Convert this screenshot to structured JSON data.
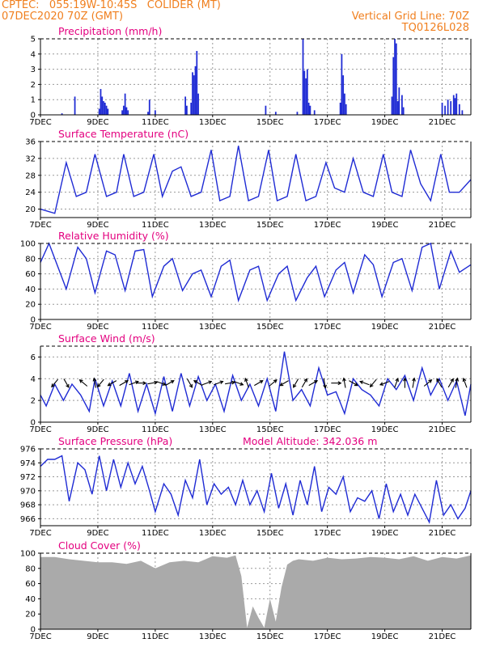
{
  "header": {
    "line1": "CPTEC:   055:19W-10:45S   COLIDER (MT)",
    "line2": "07DEC2020 70Z (GMT)",
    "right1": "Vertical Grid Line: 70Z",
    "right2": "TQ0126L028"
  },
  "colors": {
    "header": "#f07f1e",
    "title": "#e3007f",
    "series": "#1f2bd4",
    "cloud": "#aaaaaa",
    "grid": "#999999",
    "axis": "#000000"
  },
  "x_axis": {
    "ticks": [
      "7DEC",
      "9DEC",
      "11DEC",
      "13DEC",
      "15DEC",
      "17DEC",
      "19DEC",
      "21DEC"
    ],
    "tick_days": [
      7,
      9,
      11,
      13,
      15,
      17,
      19,
      21
    ],
    "range": [
      7.0,
      22.0
    ]
  },
  "chart_data": [
    {
      "type": "bar",
      "title": "Precipitation (mm/h)",
      "ylim": [
        0,
        5
      ],
      "yticks": [
        0,
        1,
        2,
        3,
        4,
        5
      ],
      "x": [
        7.75,
        8.2,
        9.05,
        9.1,
        9.15,
        9.2,
        9.25,
        9.3,
        9.35,
        9.85,
        9.9,
        9.95,
        10.0,
        10.05,
        10.75,
        10.8,
        11.0,
        12.05,
        12.1,
        12.25,
        12.3,
        12.35,
        12.4,
        12.45,
        12.5,
        14.85,
        15.2,
        15.95,
        16.15,
        16.2,
        16.25,
        16.3,
        16.35,
        16.4,
        16.55,
        17.45,
        17.5,
        17.55,
        17.6,
        17.65,
        19.25,
        19.3,
        19.35,
        19.4,
        19.45,
        19.5,
        19.6,
        19.65,
        21.0,
        21.1,
        21.2,
        21.3,
        21.4,
        21.45,
        21.5,
        21.6,
        21.7
      ],
      "values": [
        0.1,
        1.2,
        0.4,
        1.7,
        1.2,
        0.9,
        0.8,
        0.6,
        0.4,
        0.3,
        0.6,
        1.4,
        0.5,
        0.3,
        0.2,
        1.0,
        0.3,
        1.2,
        0.6,
        0.8,
        2.8,
        2.6,
        3.2,
        4.2,
        1.4,
        0.6,
        0.2,
        0.2,
        5.0,
        2.9,
        2.4,
        3.0,
        0.8,
        0.6,
        0.3,
        0.8,
        4.0,
        2.6,
        1.4,
        0.7,
        1.2,
        3.8,
        5.0,
        4.7,
        0.9,
        1.8,
        1.3,
        0.5,
        0.8,
        0.6,
        1.0,
        0.9,
        1.3,
        1.1,
        1.4,
        0.7,
        0.3
      ]
    },
    {
      "type": "line",
      "title": "Surface Temperature (nC)",
      "ylim": [
        18,
        36
      ],
      "yticks": [
        20,
        24,
        28,
        32,
        36
      ],
      "series": [
        {
          "x": [
            7.0,
            7.5,
            7.9,
            8.25,
            8.6,
            8.9,
            9.3,
            9.65,
            9.9,
            10.25,
            10.6,
            10.95,
            11.25,
            11.6,
            11.9,
            12.25,
            12.6,
            12.95,
            13.25,
            13.6,
            13.9,
            14.25,
            14.6,
            14.95,
            15.25,
            15.6,
            15.9,
            16.25,
            16.6,
            16.95,
            17.25,
            17.6,
            17.9,
            18.25,
            18.6,
            18.95,
            19.25,
            19.6,
            19.9,
            20.25,
            20.6,
            20.95,
            21.25,
            21.6,
            22.0
          ],
          "y": [
            20,
            19,
            31,
            23,
            24,
            33,
            23,
            24,
            33,
            23,
            24,
            33,
            23,
            29,
            30,
            23,
            24,
            34,
            22,
            23,
            35,
            22,
            23,
            34,
            22,
            23,
            33,
            22,
            23,
            31,
            25,
            24,
            32,
            24,
            23,
            33,
            24,
            23,
            34,
            26,
            22,
            33,
            24,
            24,
            27
          ]
        }
      ]
    },
    {
      "type": "line",
      "title": "Relative Humidity (%)",
      "ylim": [
        0,
        100
      ],
      "yticks": [
        0,
        20,
        40,
        60,
        80,
        100
      ],
      "series": [
        {
          "x": [
            7.0,
            7.3,
            7.9,
            8.3,
            8.6,
            8.9,
            9.3,
            9.6,
            9.95,
            10.3,
            10.6,
            10.9,
            11.3,
            11.6,
            11.95,
            12.3,
            12.6,
            12.95,
            13.3,
            13.6,
            13.9,
            14.3,
            14.6,
            14.9,
            15.3,
            15.6,
            15.9,
            16.3,
            16.6,
            16.9,
            17.3,
            17.6,
            17.9,
            18.3,
            18.6,
            18.9,
            19.3,
            19.6,
            19.95,
            20.3,
            20.6,
            20.9,
            21.3,
            21.6,
            22.0
          ],
          "y": [
            75,
            100,
            40,
            95,
            80,
            35,
            90,
            85,
            38,
            90,
            92,
            30,
            70,
            80,
            38,
            60,
            65,
            30,
            70,
            78,
            25,
            65,
            70,
            25,
            60,
            70,
            25,
            55,
            70,
            30,
            65,
            75,
            35,
            85,
            72,
            30,
            75,
            80,
            38,
            95,
            100,
            40,
            90,
            62,
            72
          ]
        }
      ]
    },
    {
      "type": "line",
      "title": "Surface Wind (m/s)",
      "ylim": [
        0,
        7
      ],
      "yticks": [
        0,
        2,
        4,
        6
      ],
      "series": [
        {
          "x": [
            7.0,
            7.2,
            7.5,
            7.8,
            8.1,
            8.4,
            8.7,
            8.9,
            9.2,
            9.5,
            9.8,
            10.1,
            10.4,
            10.7,
            11.0,
            11.3,
            11.6,
            11.9,
            12.2,
            12.5,
            12.8,
            13.1,
            13.4,
            13.7,
            14.0,
            14.3,
            14.6,
            14.9,
            15.2,
            15.5,
            15.8,
            16.1,
            16.4,
            16.7,
            17.0,
            17.3,
            17.6,
            17.9,
            18.2,
            18.5,
            18.8,
            19.1,
            19.4,
            19.7,
            20.0,
            20.3,
            20.6,
            20.9,
            21.2,
            21.5,
            21.8,
            22.0
          ],
          "y": [
            2.5,
            1.5,
            3.5,
            2.0,
            3.5,
            2.5,
            1.0,
            4.0,
            1.5,
            3.8,
            1.5,
            4.5,
            1.0,
            3.5,
            0.8,
            4.2,
            1.0,
            4.5,
            1.5,
            4.2,
            2.0,
            3.5,
            1.0,
            4.3,
            2.0,
            3.5,
            1.5,
            4.0,
            1.0,
            6.5,
            2.0,
            3.0,
            1.5,
            5.0,
            2.5,
            2.8,
            0.8,
            4.0,
            3.0,
            2.5,
            1.5,
            4.0,
            3.0,
            4.3,
            2.0,
            5.0,
            2.5,
            4.0,
            2.0,
            3.8,
            0.6,
            3.5
          ]
        }
      ]
    },
    {
      "type": "line",
      "title": "Surface Pressure (hPa)",
      "annotation": "Model Altitude: 342.036 m",
      "ylim": [
        965,
        976
      ],
      "yticks": [
        966,
        968,
        970,
        972,
        974,
        976
      ],
      "series": [
        {
          "x": [
            7.0,
            7.25,
            7.5,
            7.75,
            8.0,
            8.3,
            8.55,
            8.8,
            9.05,
            9.3,
            9.55,
            9.8,
            10.05,
            10.3,
            10.55,
            10.8,
            11.0,
            11.3,
            11.55,
            11.8,
            12.05,
            12.3,
            12.55,
            12.8,
            13.05,
            13.3,
            13.55,
            13.8,
            14.05,
            14.3,
            14.55,
            14.8,
            15.05,
            15.3,
            15.55,
            15.8,
            16.05,
            16.3,
            16.55,
            16.8,
            17.05,
            17.3,
            17.55,
            17.8,
            18.05,
            18.3,
            18.55,
            18.8,
            19.05,
            19.3,
            19.55,
            19.8,
            20.05,
            20.3,
            20.55,
            20.8,
            21.05,
            21.3,
            21.55,
            21.8,
            22.0
          ],
          "y": [
            973.5,
            974.5,
            974.5,
            975.0,
            968.5,
            974.0,
            973.0,
            969.5,
            975.0,
            970.0,
            974.5,
            970.5,
            974.0,
            971.0,
            973.5,
            970.0,
            967.0,
            971.0,
            969.5,
            966.5,
            971.5,
            969.0,
            974.5,
            968.0,
            971.0,
            969.5,
            970.5,
            968.0,
            971.5,
            968.0,
            970.0,
            967.0,
            972.5,
            967.5,
            971.0,
            966.5,
            971.5,
            968.0,
            973.5,
            967.0,
            970.5,
            969.5,
            972.0,
            967.0,
            969.0,
            968.5,
            970.0,
            966.0,
            971.0,
            967.0,
            969.5,
            966.5,
            969.5,
            967.5,
            965.5,
            971.5,
            966.5,
            968.0,
            966.0,
            967.5,
            970.0
          ]
        }
      ]
    },
    {
      "type": "area",
      "title": "Cloud Cover (%)",
      "ylim": [
        0,
        100
      ],
      "yticks": [
        0,
        20,
        40,
        60,
        80,
        100
      ],
      "series": [
        {
          "x": [
            7.0,
            7.5,
            8.0,
            8.5,
            9.0,
            9.5,
            10.0,
            10.5,
            11.0,
            11.5,
            12.0,
            12.5,
            13.0,
            13.5,
            13.8,
            14.0,
            14.2,
            14.4,
            14.6,
            14.8,
            15.0,
            15.2,
            15.4,
            15.6,
            15.8,
            16.0,
            16.5,
            17.0,
            17.5,
            18.0,
            18.5,
            19.0,
            19.5,
            20.0,
            20.5,
            21.0,
            21.5,
            22.0
          ],
          "y": [
            95,
            95,
            92,
            90,
            88,
            88,
            86,
            90,
            80,
            88,
            90,
            88,
            96,
            94,
            97,
            70,
            2,
            30,
            15,
            2,
            40,
            10,
            55,
            85,
            90,
            92,
            90,
            94,
            92,
            93,
            95,
            94,
            92,
            96,
            90,
            95,
            93,
            97
          ]
        }
      ]
    }
  ],
  "wind_arrows": {
    "x": [
      7.5,
      7.9,
      8.5,
      8.9,
      9.1,
      9.5,
      9.9,
      10.25,
      10.5,
      10.9,
      11.2,
      11.5,
      12.2,
      12.5,
      12.8,
      13.2,
      13.6,
      13.9,
      14.2,
      14.6,
      15.1,
      15.5,
      15.9,
      16.2,
      16.5,
      16.9,
      17.3,
      17.6,
      17.9,
      18.3,
      18.6,
      19.0,
      19.4,
      19.7,
      20.0,
      20.5,
      20.9,
      21.3,
      21.5,
      21.8
    ],
    "angle_deg": [
      230,
      300,
      140,
      100,
      230,
      210,
      30,
      20,
      0,
      10,
      340,
      30,
      300,
      150,
      20,
      20,
      10,
      340,
      110,
      30,
      40,
      210,
      240,
      60,
      30,
      280,
      0,
      100,
      330,
      160,
      230,
      200,
      70,
      90,
      80,
      40,
      120,
      60,
      80,
      110
    ]
  }
}
